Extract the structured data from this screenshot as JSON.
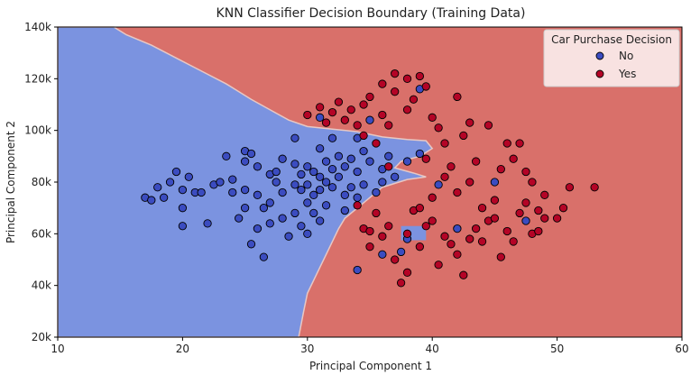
{
  "chart_data": {
    "type": "scatter",
    "title": "KNN Classifier Decision Boundary (Training Data)",
    "xlabel": "Principal Component 1",
    "ylabel": "Principal Component 2",
    "xlim": [
      10,
      60
    ],
    "ylim": [
      20000,
      140000
    ],
    "x_ticks": [
      "10",
      "20",
      "30",
      "40",
      "50",
      "60"
    ],
    "x_tick_values": [
      10,
      20,
      30,
      40,
      50,
      60
    ],
    "y_ticks": [
      "20k",
      "40k",
      "60k",
      "80k",
      "100k",
      "120k",
      "140k"
    ],
    "y_tick_values": [
      20000,
      40000,
      60000,
      80000,
      100000,
      120000,
      140000
    ],
    "grid": false,
    "legend": {
      "title": "Car Purchase Decision",
      "placement": "top-right",
      "entries": [
        "No",
        "Yes"
      ]
    },
    "colors": {
      "no_point": "#3b4cc0",
      "yes_point": "#b40426",
      "no_region": "#7b93e0",
      "yes_region": "#d9706a",
      "edge": "#000000"
    },
    "decision_boundary": {
      "no_region_polygon": [
        [
          10,
          140000
        ],
        [
          14.5,
          140000
        ],
        [
          15.5,
          137000
        ],
        [
          17.5,
          133000
        ],
        [
          19.5,
          128000
        ],
        [
          21.5,
          123000
        ],
        [
          23.5,
          118000
        ],
        [
          25.5,
          112000
        ],
        [
          27,
          108000
        ],
        [
          28.5,
          104000
        ],
        [
          30,
          101500
        ],
        [
          32,
          100500
        ],
        [
          34,
          99500
        ],
        [
          36,
          97500
        ],
        [
          38,
          96500
        ],
        [
          39.5,
          96000
        ],
        [
          40,
          93000
        ],
        [
          39,
          90000
        ],
        [
          37.5,
          88000
        ],
        [
          37,
          85500
        ],
        [
          38.5,
          83500
        ],
        [
          39.5,
          82000
        ],
        [
          38,
          81000
        ],
        [
          36,
          78000
        ],
        [
          35,
          74000
        ],
        [
          34,
          70000
        ],
        [
          33,
          66000
        ],
        [
          32.5,
          62000
        ],
        [
          32,
          57000
        ],
        [
          31.5,
          52000
        ],
        [
          31,
          47000
        ],
        [
          30.5,
          42000
        ],
        [
          30,
          37000
        ],
        [
          29.7,
          30000
        ],
        [
          29.5,
          25000
        ],
        [
          29.3,
          20000
        ],
        [
          10,
          20000
        ]
      ],
      "no_islands": [
        [
          [
            37.5,
            63000
          ],
          [
            39.5,
            63000
          ],
          [
            39.5,
            57500
          ],
          [
            37.5,
            57500
          ]
        ]
      ]
    },
    "series": [
      {
        "name": "No",
        "points": [
          [
            17,
            74000
          ],
          [
            17.5,
            73000
          ],
          [
            18,
            78000
          ],
          [
            18.5,
            74000
          ],
          [
            19,
            80000
          ],
          [
            19.5,
            84000
          ],
          [
            20,
            77000
          ],
          [
            20,
            70000
          ],
          [
            20,
            63000
          ],
          [
            20.5,
            82000
          ],
          [
            21,
            76000
          ],
          [
            21.5,
            76000
          ],
          [
            22,
            64000
          ],
          [
            22.5,
            79000
          ],
          [
            23,
            80000
          ],
          [
            23.5,
            90000
          ],
          [
            24,
            81000
          ],
          [
            24,
            76000
          ],
          [
            24.5,
            66000
          ],
          [
            25,
            92000
          ],
          [
            25,
            88000
          ],
          [
            25,
            77000
          ],
          [
            25,
            70000
          ],
          [
            25.5,
            91000
          ],
          [
            25.5,
            56000
          ],
          [
            26,
            86000
          ],
          [
            26,
            75000
          ],
          [
            26,
            62000
          ],
          [
            26.5,
            70000
          ],
          [
            26.5,
            51000
          ],
          [
            27,
            83000
          ],
          [
            27,
            72000
          ],
          [
            27,
            64000
          ],
          [
            27.5,
            84000
          ],
          [
            27.5,
            80000
          ],
          [
            28,
            89000
          ],
          [
            28,
            76000
          ],
          [
            28,
            66000
          ],
          [
            28.5,
            59000
          ],
          [
            29,
            97000
          ],
          [
            29,
            87000
          ],
          [
            29,
            79000
          ],
          [
            29,
            68000
          ],
          [
            29.5,
            83000
          ],
          [
            29.5,
            77000
          ],
          [
            29.5,
            63000
          ],
          [
            30,
            86000
          ],
          [
            30,
            79000
          ],
          [
            30,
            72000
          ],
          [
            30,
            60000
          ],
          [
            30.5,
            84000
          ],
          [
            30.5,
            75000
          ],
          [
            30.5,
            68000
          ],
          [
            31,
            105000
          ],
          [
            31,
            93000
          ],
          [
            31,
            82000
          ],
          [
            31,
            77000
          ],
          [
            31,
            65000
          ],
          [
            31.5,
            88000
          ],
          [
            31.5,
            80000
          ],
          [
            31.5,
            71000
          ],
          [
            32,
            97000
          ],
          [
            32,
            85000
          ],
          [
            32,
            78000
          ],
          [
            32.5,
            90000
          ],
          [
            32.5,
            82000
          ],
          [
            33,
            86000
          ],
          [
            33,
            75000
          ],
          [
            33,
            69000
          ],
          [
            33.5,
            89000
          ],
          [
            33.5,
            78000
          ],
          [
            34,
            97000
          ],
          [
            34,
            84000
          ],
          [
            34,
            74000
          ],
          [
            34.5,
            92000
          ],
          [
            34.5,
            79000
          ],
          [
            35,
            88000
          ],
          [
            35,
            104000
          ],
          [
            35.5,
            76000
          ],
          [
            36,
            85000
          ],
          [
            36,
            80000
          ],
          [
            36.5,
            90000
          ],
          [
            37,
            82000
          ],
          [
            38,
            88000
          ],
          [
            39,
            91000
          ],
          [
            39,
            116000
          ],
          [
            40.5,
            79000
          ],
          [
            38,
            58000
          ],
          [
            37.5,
            53000
          ],
          [
            34,
            46000
          ],
          [
            36,
            52000
          ],
          [
            42,
            62000
          ],
          [
            45,
            80000
          ],
          [
            47.5,
            65000
          ]
        ]
      },
      {
        "name": "Yes",
        "points": [
          [
            30,
            106000
          ],
          [
            31,
            109000
          ],
          [
            31.5,
            103000
          ],
          [
            32,
            107000
          ],
          [
            32.5,
            111000
          ],
          [
            33,
            104000
          ],
          [
            33.5,
            108000
          ],
          [
            34,
            102000
          ],
          [
            34.5,
            110000
          ],
          [
            34.5,
            98000
          ],
          [
            35,
            113000
          ],
          [
            35.5,
            95000
          ],
          [
            36,
            118000
          ],
          [
            36,
            106000
          ],
          [
            36.5,
            102000
          ],
          [
            37,
            122000
          ],
          [
            37,
            115000
          ],
          [
            38,
            120000
          ],
          [
            38,
            108000
          ],
          [
            38.5,
            112000
          ],
          [
            39,
            121000
          ],
          [
            39.5,
            117000
          ],
          [
            40,
            105000
          ],
          [
            40.5,
            101000
          ],
          [
            41,
            95000
          ],
          [
            41.5,
            86000
          ],
          [
            42,
            113000
          ],
          [
            42.5,
            98000
          ],
          [
            43,
            103000
          ],
          [
            43.5,
            88000
          ],
          [
            44,
            70000
          ],
          [
            44.5,
            102000
          ],
          [
            45,
            73000
          ],
          [
            45.5,
            85000
          ],
          [
            46,
            95000
          ],
          [
            46.5,
            89000
          ],
          [
            47,
            95000
          ],
          [
            47.5,
            84000
          ],
          [
            48,
            80000
          ],
          [
            48.5,
            69000
          ],
          [
            49,
            75000
          ],
          [
            50,
            66000
          ],
          [
            50.5,
            70000
          ],
          [
            51,
            78000
          ],
          [
            53,
            78000
          ],
          [
            34.5,
            62000
          ],
          [
            35,
            55000
          ],
          [
            35.5,
            68000
          ],
          [
            36,
            59000
          ],
          [
            36.5,
            63000
          ],
          [
            37,
            50000
          ],
          [
            37.5,
            41000
          ],
          [
            38,
            45000
          ],
          [
            38.5,
            69000
          ],
          [
            39,
            55000
          ],
          [
            39.5,
            63000
          ],
          [
            40,
            65000
          ],
          [
            40.5,
            48000
          ],
          [
            41,
            59000
          ],
          [
            41.5,
            56000
          ],
          [
            42,
            52000
          ],
          [
            42.5,
            44000
          ],
          [
            43,
            58000
          ],
          [
            43.5,
            62000
          ],
          [
            44,
            57000
          ],
          [
            44.5,
            65000
          ],
          [
            45,
            66000
          ],
          [
            45.5,
            51000
          ],
          [
            46,
            61000
          ],
          [
            46.5,
            57000
          ],
          [
            47,
            68000
          ],
          [
            47.5,
            72000
          ],
          [
            48,
            60000
          ],
          [
            48.5,
            61000
          ],
          [
            49,
            66000
          ],
          [
            38,
            60000
          ],
          [
            39,
            70000
          ],
          [
            40,
            74000
          ],
          [
            41,
            82000
          ],
          [
            42,
            76000
          ],
          [
            43,
            80000
          ],
          [
            39.5,
            89000
          ],
          [
            36.5,
            86000
          ],
          [
            34,
            71000
          ],
          [
            35,
            61000
          ]
        ]
      }
    ]
  }
}
